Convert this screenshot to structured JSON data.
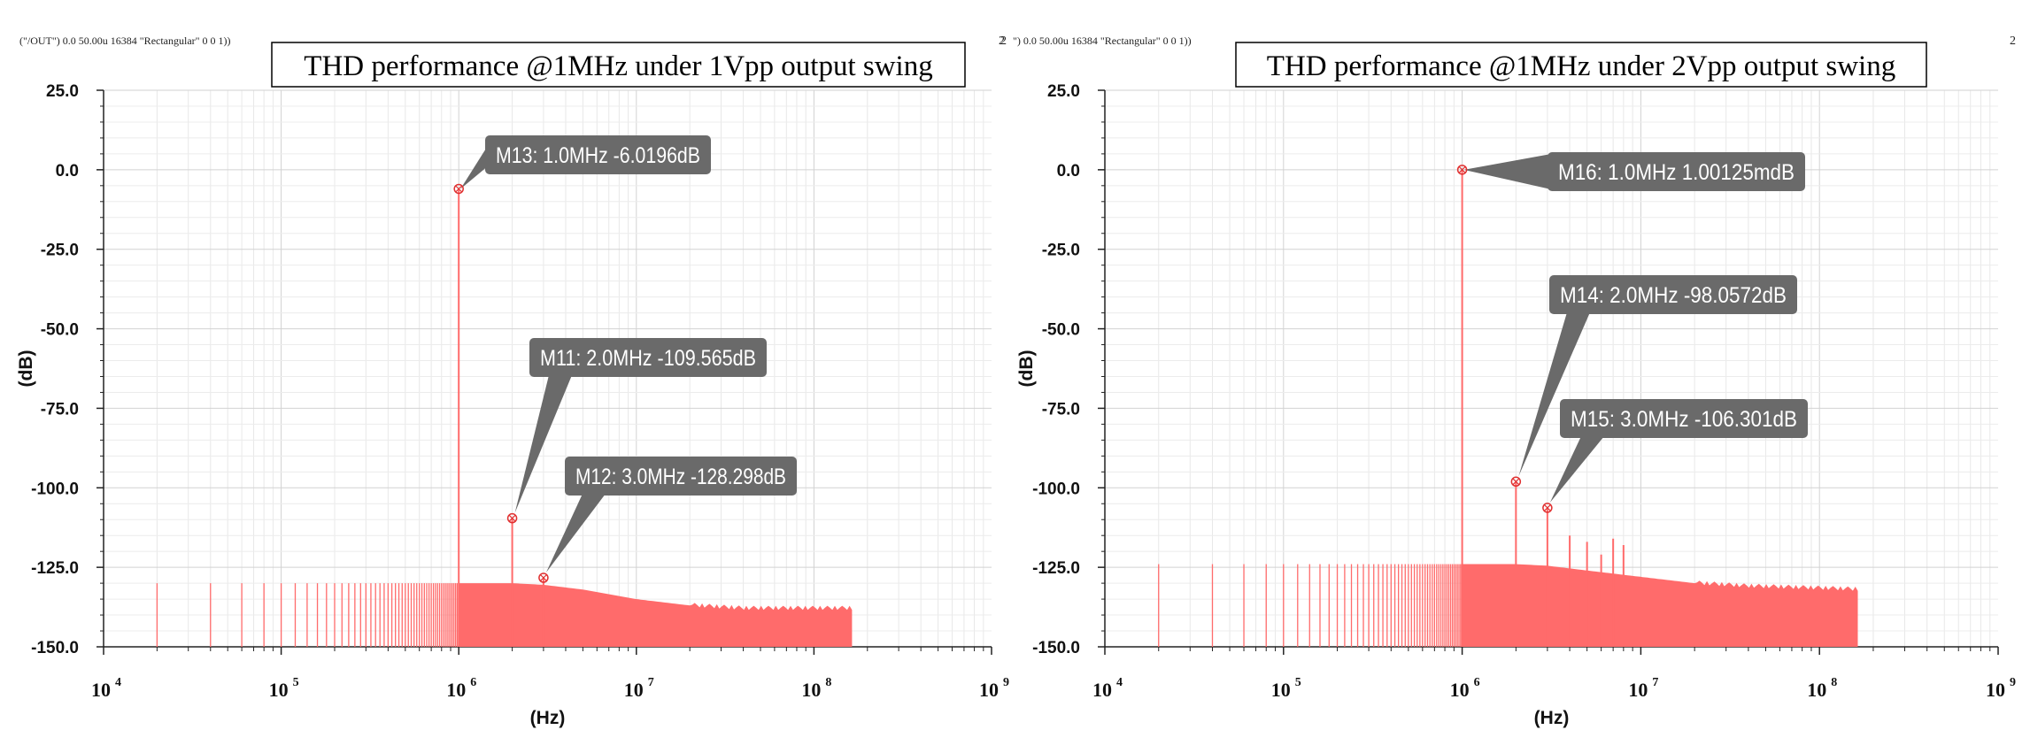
{
  "chart_data": [
    {
      "type": "line",
      "expression": "(\"/OUT\") 0.0 50.00u 16384 \"Rectangular\" 0 0 1))",
      "corner_label": "2",
      "title": "THD performance @1MHz under 1Vpp output swing",
      "xlabel": "(Hz)",
      "ylabel": "(dB)",
      "x_scale": "log",
      "xlim": [
        10000,
        1000000000
      ],
      "x_tick_bases": [
        "10",
        "10",
        "10",
        "10",
        "10",
        "10"
      ],
      "x_tick_exponents": [
        "4",
        "5",
        "6",
        "7",
        "8",
        "9"
      ],
      "x_tick_values": [
        10000,
        100000,
        1000000,
        10000000,
        100000000,
        1000000000
      ],
      "ylim": [
        -150,
        25
      ],
      "y_ticks": [
        25,
        0,
        -25,
        -50,
        -75,
        -100,
        -125,
        -150
      ],
      "y_tick_labels": [
        "25.0",
        "0.0",
        "-25.0",
        "-50.0",
        "-75.0",
        "-100.0",
        "-125.0",
        "-150.0"
      ],
      "grid": true,
      "series_color": "#ff6b6b",
      "noise_floor": {
        "bin_hz": 20000,
        "max_hz": 163840000,
        "x": [
          20000,
          100000,
          1000000,
          2000000,
          3000000,
          5000000,
          10000000,
          20000000,
          40000000,
          163840000
        ],
        "y": [
          -130,
          -130,
          -130,
          -130,
          -130.5,
          -132,
          -135,
          -137,
          -138,
          -138
        ]
      },
      "spectral_lines": [
        {
          "x": 1000000,
          "y": -6.02
        },
        {
          "x": 2000000,
          "y": -109.57
        },
        {
          "x": 3000000,
          "y": -128.3
        }
      ],
      "markers": [
        {
          "name": "M13",
          "x": 1000000,
          "y": -6.0196,
          "label": "M13: 1.0MHz -6.0196dB"
        },
        {
          "name": "M11",
          "x": 2000000,
          "y": -109.565,
          "label": "M11: 2.0MHz -109.565dB"
        },
        {
          "name": "M12",
          "x": 3000000,
          "y": -128.298,
          "label": "M12: 3.0MHz -128.298dB"
        }
      ]
    },
    {
      "type": "line",
      "expression": "\") 0.0 50.00u 16384 \"Rectangular\" 0 0 1))",
      "corner_label_left": "2",
      "corner_label": "2",
      "title": "THD performance @1MHz under 2Vpp output swing",
      "xlabel": "(Hz)",
      "ylabel": "(dB)",
      "x_scale": "log",
      "xlim": [
        10000,
        1000000000
      ],
      "x_tick_bases": [
        "10",
        "10",
        "10",
        "10",
        "10",
        "10"
      ],
      "x_tick_exponents": [
        "4",
        "5",
        "6",
        "7",
        "8",
        "9"
      ],
      "x_tick_values": [
        10000,
        100000,
        1000000,
        10000000,
        100000000,
        1000000000
      ],
      "ylim": [
        -150,
        25
      ],
      "y_ticks": [
        25,
        0,
        -25,
        -50,
        -75,
        -100,
        -125,
        -150
      ],
      "y_tick_labels": [
        "25.0",
        "0.0",
        "-25.0",
        "-50.0",
        "-75.0",
        "-100.0",
        "-125.0",
        "-150.0"
      ],
      "grid": true,
      "series_color": "#ff6b6b",
      "noise_floor": {
        "bin_hz": 20000,
        "max_hz": 163840000,
        "x": [
          20000,
          100000,
          1000000,
          2000000,
          3000000,
          5000000,
          10000000,
          20000000,
          40000000,
          163840000
        ],
        "y": [
          -124,
          -124,
          -124,
          -124,
          -124.5,
          -126,
          -128,
          -130,
          -131,
          -132
        ]
      },
      "spectral_lines": [
        {
          "x": 1000000,
          "y": 0.001
        },
        {
          "x": 2000000,
          "y": -98.06
        },
        {
          "x": 3000000,
          "y": -106.3
        },
        {
          "x": 4000000,
          "y": -115
        },
        {
          "x": 5000000,
          "y": -117
        },
        {
          "x": 6000000,
          "y": -121
        },
        {
          "x": 7000000,
          "y": -116
        },
        {
          "x": 8000000,
          "y": -118
        }
      ],
      "markers": [
        {
          "name": "M16",
          "x": 1000000,
          "y": 0.00100125,
          "label": "M16: 1.0MHz 1.00125mdB"
        },
        {
          "name": "M14",
          "x": 2000000,
          "y": -98.0572,
          "label": "M14: 2.0MHz -98.0572dB"
        },
        {
          "name": "M15",
          "x": 3000000,
          "y": -106.301,
          "label": "M15: 3.0MHz -106.301dB"
        }
      ]
    }
  ]
}
